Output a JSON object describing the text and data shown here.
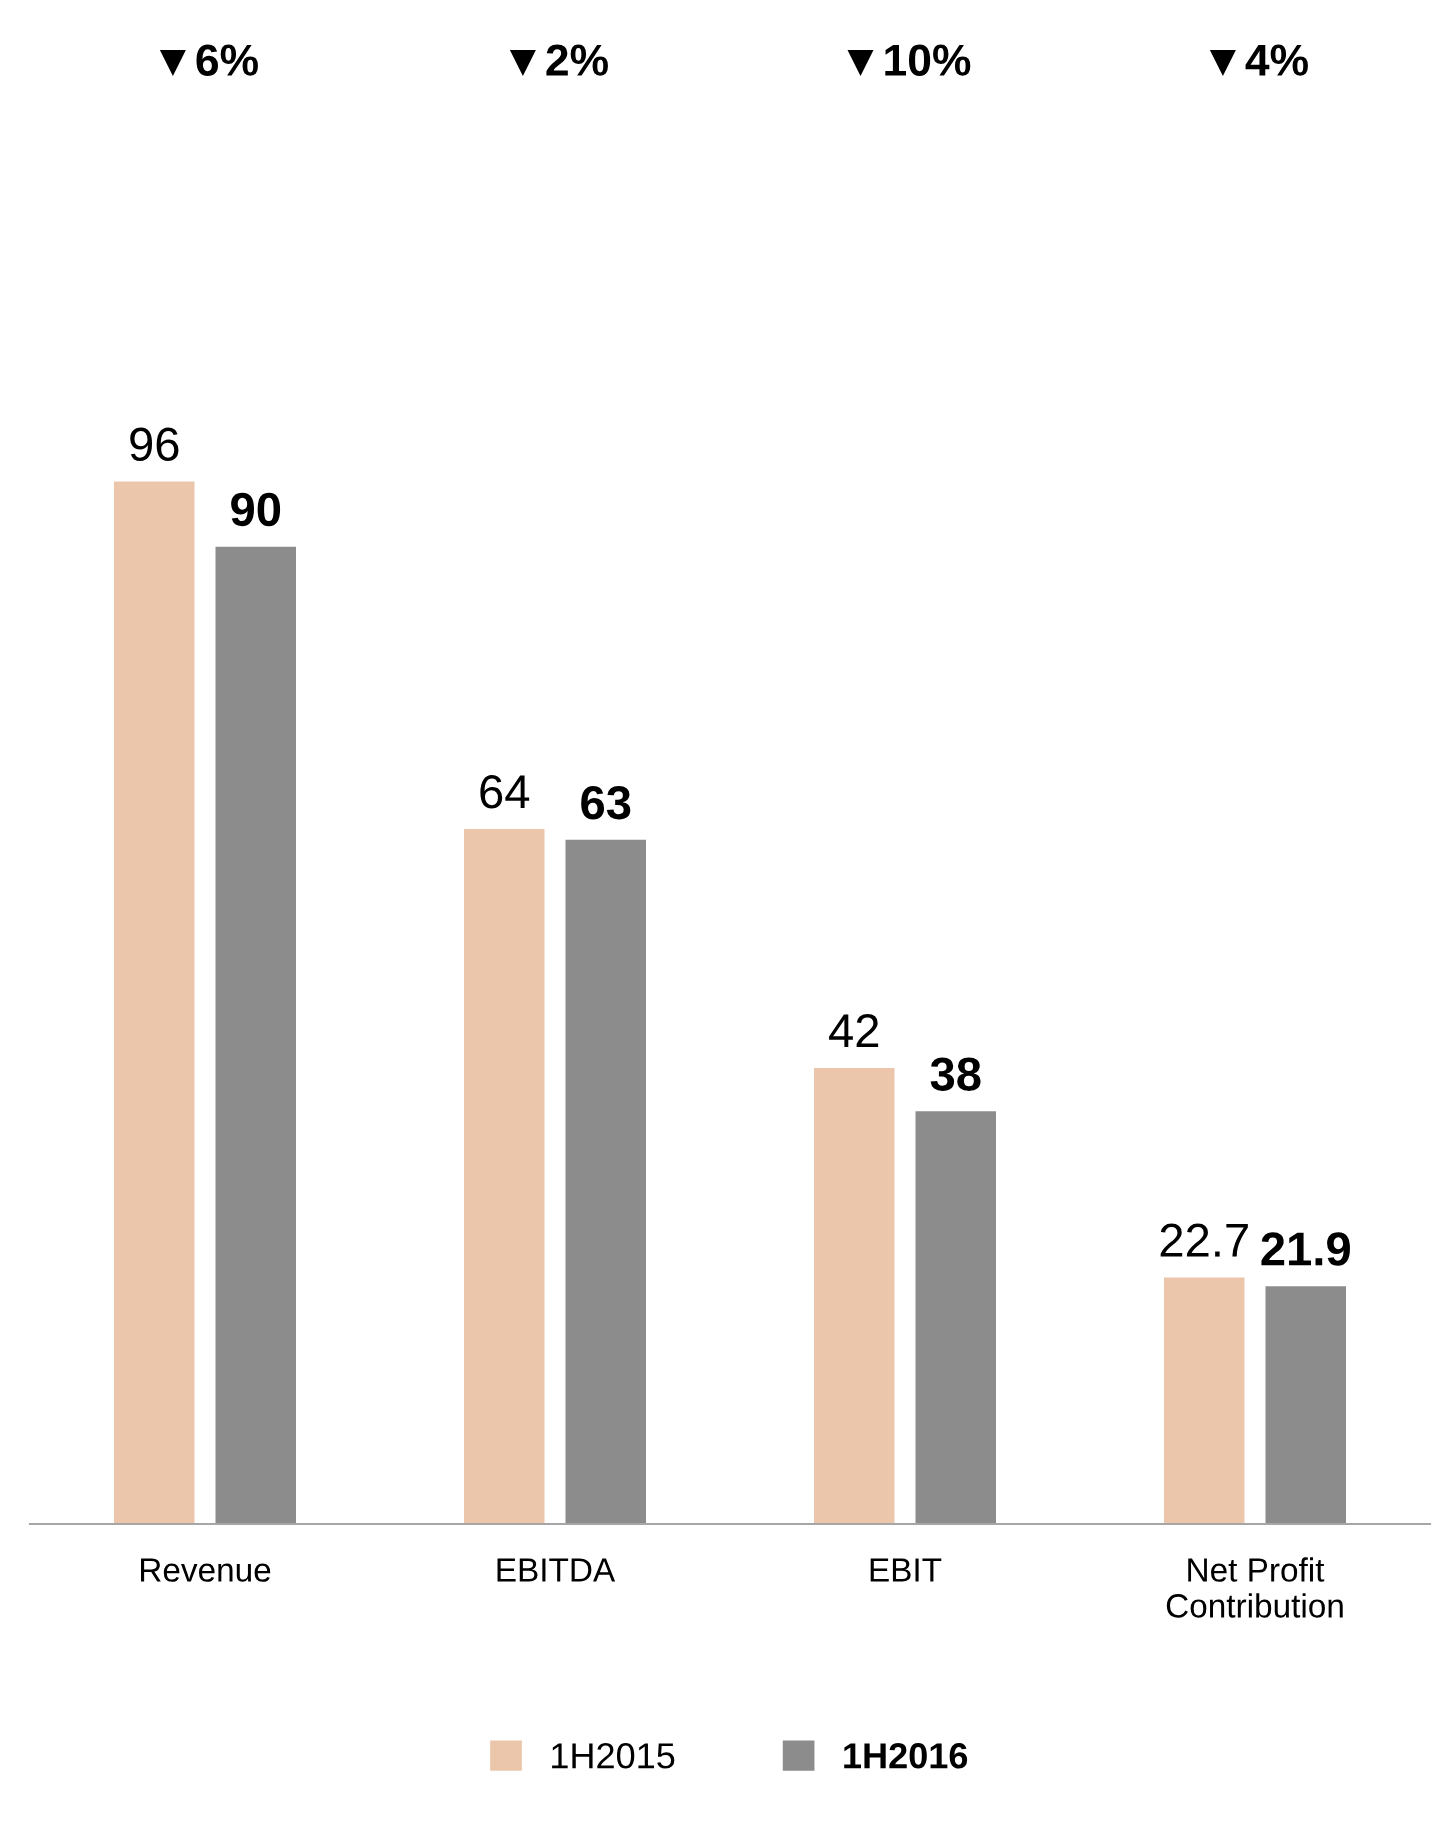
{
  "chart_data": {
    "type": "bar",
    "categories": [
      "Revenue",
      "EBITDA",
      "EBIT",
      "Net Profit\nContribution"
    ],
    "series": [
      {
        "name": "1H2015",
        "color": "#ecc6ab",
        "values": [
          96,
          64,
          42,
          22.7
        ]
      },
      {
        "name": "1H2016",
        "color": "#8c8c8c",
        "values": [
          90,
          63,
          38,
          21.9
        ]
      }
    ],
    "annotations": [
      "▼6%",
      "▼2%",
      "▼10%",
      "▼4%"
    ],
    "data_labels": true,
    "legend": "bottom",
    "grid": false
  }
}
